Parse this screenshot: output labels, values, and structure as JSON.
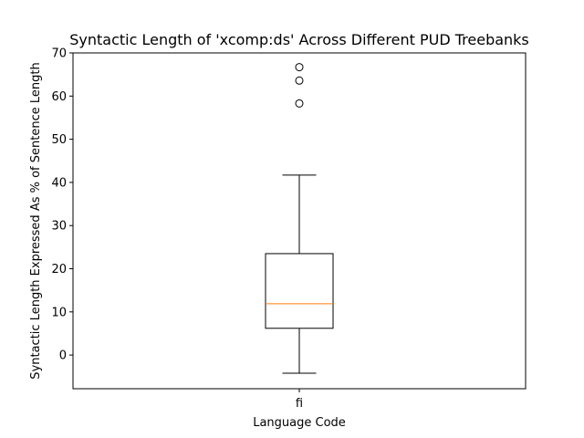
{
  "chart_data": {
    "type": "box",
    "title": "Syntactic Length of 'xcomp:ds' Across Different PUD Treebanks",
    "xlabel": "Language Code",
    "ylabel": "Syntactic Length Expressed As % of Sentence Length",
    "categories": [
      "fi"
    ],
    "ylim": [
      -7.8,
      70
    ],
    "yticks": [
      0,
      10,
      20,
      30,
      40,
      50,
      60,
      70
    ],
    "boxes": [
      {
        "category": "fi",
        "whisker_low": -4.2,
        "q1": 6.2,
        "median": 11.9,
        "q3": 23.5,
        "whisker_high": 41.7,
        "outliers": [
          58.3,
          63.6,
          66.7
        ]
      }
    ],
    "grid": false,
    "colors": {
      "box": "#000000",
      "median": "#ff7f0e",
      "background": "#ffffff"
    }
  }
}
